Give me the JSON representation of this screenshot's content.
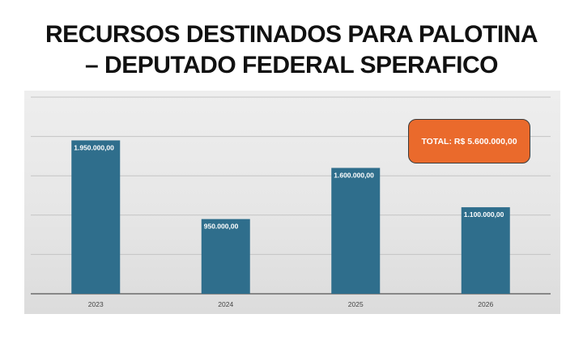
{
  "title": {
    "line1": "RECURSOS DESTINADOS PARA PALOTINA",
    "line2": "– DEPUTADO FEDERAL SPERAFICO"
  },
  "total_badge": "TOTAL: R$ 5.600.000,00",
  "colors": {
    "bar": "#2f6e8c",
    "badge": "#ea6a2c",
    "grid": "#c4c4c4"
  },
  "chart_data": {
    "type": "bar",
    "categories": [
      "2023",
      "2024",
      "2025",
      "2026"
    ],
    "values": [
      1950000,
      950000,
      1600000,
      1100000
    ],
    "data_labels": [
      "1.950.000,00",
      "950.000,00",
      "1.600.000,00",
      "1.100.000,00"
    ],
    "title": "RECURSOS DESTINADOS PARA PALOTINA – DEPUTADO FEDERAL SPERAFICO",
    "xlabel": "",
    "ylabel": "",
    "ylim": [
      0,
      2500000
    ],
    "grid": true,
    "legend": "none",
    "annotation": "TOTAL: R$ 5.600.000,00"
  }
}
